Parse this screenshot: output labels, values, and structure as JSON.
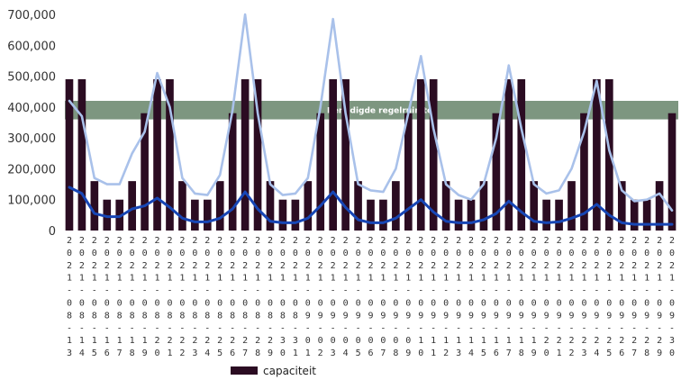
{
  "chart_data": {
    "type": "bar",
    "y_ticks": [
      "0",
      "100,000",
      "200,000",
      "300,000",
      "400,000",
      "500,000",
      "600,000",
      "700,000"
    ],
    "ylim": [
      0,
      700000
    ],
    "categories": [
      "2021-08-13",
      "2021-08-14",
      "2021-08-15",
      "2021-08-16",
      "2021-08-17",
      "2021-08-18",
      "2021-08-19",
      "2021-08-20",
      "2021-08-21",
      "2021-08-22",
      "2021-08-23",
      "2021-08-24",
      "2021-08-25",
      "2021-08-26",
      "2021-08-27",
      "2021-08-28",
      "2021-08-29",
      "2021-08-30",
      "2021-08-31",
      "2021-09-01",
      "2021-09-02",
      "2021-09-03",
      "2021-09-04",
      "2021-09-05",
      "2021-09-06",
      "2021-09-07",
      "2021-09-08",
      "2021-09-09",
      "2021-09-10",
      "2021-09-11",
      "2021-09-12",
      "2021-09-13",
      "2021-09-14",
      "2021-09-15",
      "2021-09-16",
      "2021-09-17",
      "2021-09-18",
      "2021-09-19",
      "2021-09-20",
      "2021-09-21",
      "2021-09-22",
      "2021-09-23",
      "2021-09-24",
      "2021-09-25",
      "2021-09-26",
      "2021-09-27",
      "2021-09-28",
      "2021-09-29",
      "2021-09-30"
    ],
    "series": [
      {
        "name": "capaciteit",
        "color": "#2b0c22",
        "values": [
          490000,
          490000,
          160000,
          100000,
          100000,
          160000,
          380000,
          490000,
          490000,
          160000,
          100000,
          100000,
          160000,
          380000,
          490000,
          490000,
          160000,
          100000,
          100000,
          160000,
          380000,
          490000,
          490000,
          160000,
          100000,
          100000,
          160000,
          380000,
          490000,
          490000,
          160000,
          100000,
          100000,
          160000,
          380000,
          490000,
          490000,
          160000,
          100000,
          100000,
          160000,
          380000,
          490000,
          490000,
          160000,
          100000,
          100000,
          160000,
          380000
        ]
      },
      {
        "color": "#a9c1ea",
        "values": [
          420000,
          370000,
          170000,
          150000,
          150000,
          250000,
          320000,
          510000,
          400000,
          170000,
          120000,
          115000,
          180000,
          390000,
          700000,
          380000,
          150000,
          115000,
          120000,
          170000,
          400000,
          685000,
          380000,
          150000,
          130000,
          125000,
          200000,
          380000,
          565000,
          330000,
          150000,
          115000,
          100000,
          150000,
          300000,
          535000,
          330000,
          150000,
          120000,
          130000,
          200000,
          320000,
          485000,
          260000,
          130000,
          95000,
          100000,
          120000,
          65000
        ]
      },
      {
        "color": "#1746b5",
        "values": [
          140000,
          120000,
          55000,
          45000,
          45000,
          70000,
          80000,
          105000,
          75000,
          40000,
          28000,
          28000,
          40000,
          70000,
          125000,
          70000,
          30000,
          25000,
          25000,
          40000,
          80000,
          125000,
          75000,
          35000,
          25000,
          25000,
          40000,
          70000,
          100000,
          60000,
          30000,
          25000,
          25000,
          35000,
          55000,
          95000,
          60000,
          30000,
          25000,
          28000,
          40000,
          55000,
          85000,
          50000,
          25000,
          20000,
          20000,
          20000,
          20000
        ]
      }
    ],
    "annotation": {
      "label": "Benodigde regelruimte",
      "y_from": 360000,
      "y_to": 420000,
      "color": "#7d9680"
    },
    "legend": {
      "placement": "bottom"
    }
  }
}
